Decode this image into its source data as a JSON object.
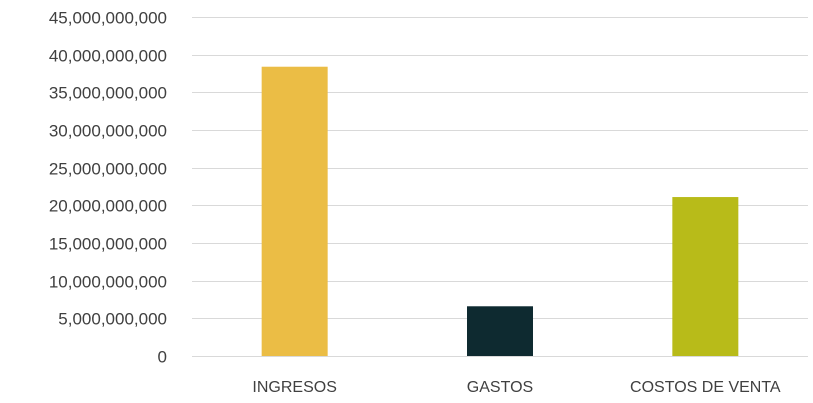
{
  "chart_data": {
    "type": "bar",
    "categories": [
      "INGRESOS",
      "GASTOS",
      "COSTOS DE VENTA"
    ],
    "values": [
      38400000000,
      6600000000,
      21100000000
    ],
    "colors": [
      "#ebbd45",
      "#0e2a30",
      "#b8bb19"
    ],
    "ylim": [
      0,
      45000000000
    ],
    "yticks": [
      0,
      5000000000,
      10000000000,
      15000000000,
      20000000000,
      25000000000,
      30000000000,
      35000000000,
      40000000000,
      45000000000
    ],
    "ytick_labels": [
      "0",
      "5,000,000,000",
      "10,000,000,000",
      "15,000,000,000",
      "20,000,000,000",
      "25,000,000,000",
      "30,000,000,000",
      "35,000,000,000",
      "40,000,000,000",
      "45,000,000,000"
    ],
    "grid": true,
    "legend": "none",
    "title": "",
    "xlabel": "",
    "ylabel": ""
  }
}
